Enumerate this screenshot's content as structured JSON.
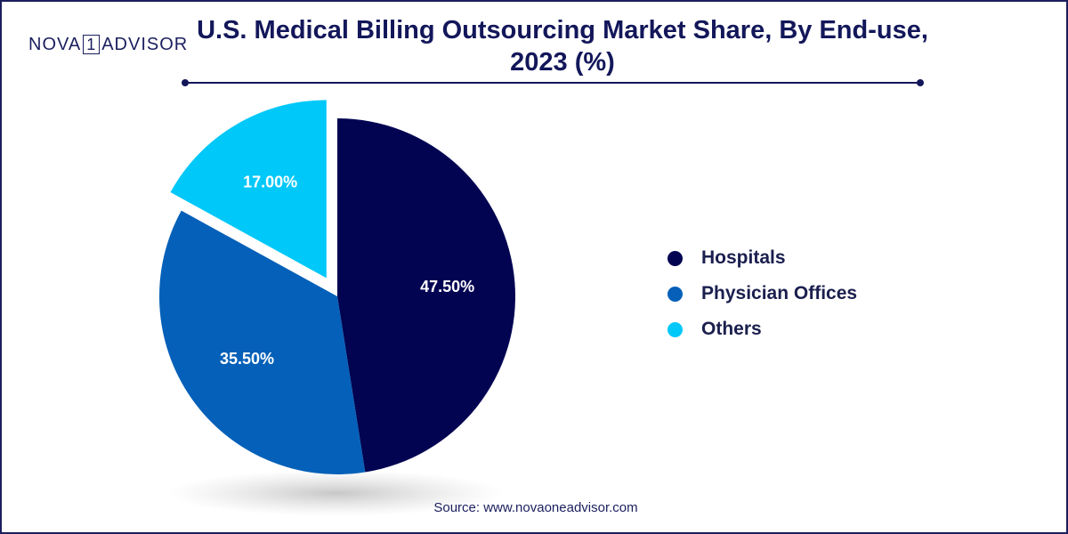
{
  "brand": {
    "logo_left": "NOVA",
    "logo_box": "1",
    "logo_right": "ADVISOR"
  },
  "header": {
    "title_line1": "U.S. Medical Billing Outsourcing Market Share, By End-use,",
    "title_line2": "2023 (%)"
  },
  "source": "Source: www.novaoneadvisor.com",
  "colors": {
    "hospitals": "#020452",
    "physician_offices": "#0460b8",
    "others": "#00c8f8",
    "title": "#13175a"
  },
  "chart_data": {
    "type": "pie",
    "title": "U.S. Medical Billing Outsourcing Market Share, By End-use, 2023 (%)",
    "legend_position": "right",
    "slices": [
      {
        "label": "Hospitals",
        "value": 47.5,
        "display": "47.50%",
        "color": "#020452"
      },
      {
        "label": "Physician Offices",
        "value": 35.5,
        "display": "35.50%",
        "color": "#0460b8"
      },
      {
        "label": "Others",
        "value": 17.0,
        "display": "17.00%",
        "color": "#00c8f8",
        "exploded": true
      }
    ]
  }
}
